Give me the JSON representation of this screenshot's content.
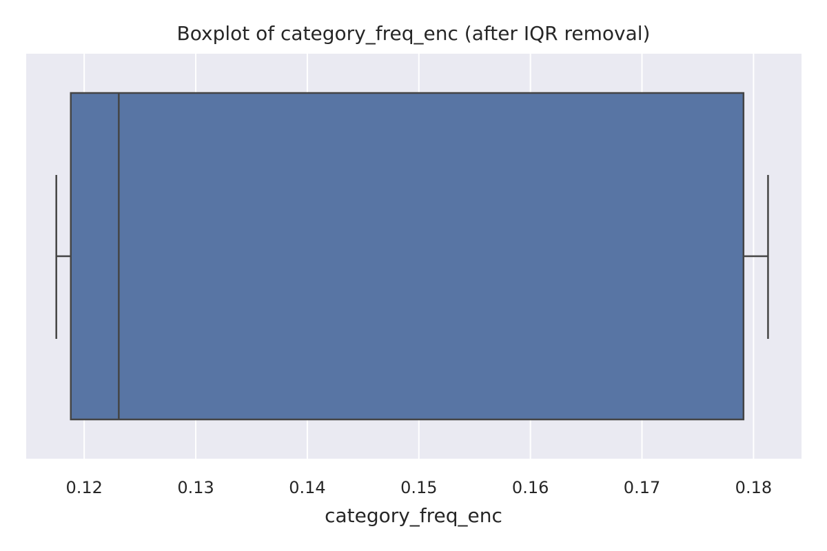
{
  "chart_data": {
    "type": "boxplot",
    "title": "Boxplot of category_freq_enc (after IQR removal)",
    "xlabel": "category_freq_enc",
    "ylabel": "",
    "orientation": "horizontal",
    "xlim": [
      0.1148,
      0.1843
    ],
    "xticks": [
      0.12,
      0.13,
      0.14,
      0.15,
      0.16,
      0.17,
      0.18
    ],
    "xtick_labels": [
      "0.12",
      "0.13",
      "0.14",
      "0.15",
      "0.16",
      "0.17",
      "0.18"
    ],
    "grid": true,
    "box": {
      "whisker_low": 0.1175,
      "q1": 0.1188,
      "median": 0.1231,
      "q3": 0.1791,
      "whisker_high": 0.1813
    },
    "colors": {
      "box_fill": "#5875a4",
      "line": "#444444",
      "plot_background": "#eaeaf2",
      "grid": "#ffffff"
    }
  }
}
